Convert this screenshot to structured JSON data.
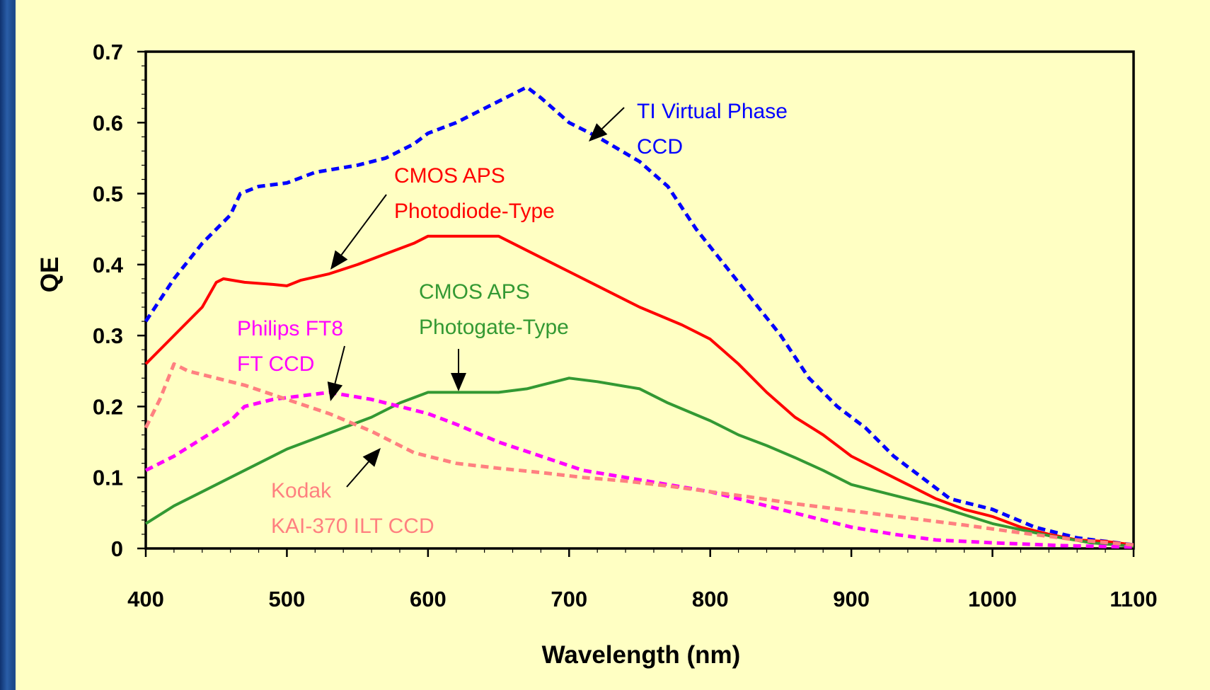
{
  "chart_data": {
    "type": "line",
    "title": "",
    "xlabel": "Wavelength (nm)",
    "ylabel": "QE",
    "xlim": [
      400,
      1100
    ],
    "ylim": [
      0,
      0.7
    ],
    "xticks": [
      "400",
      "500",
      "600",
      "700",
      "800",
      "900",
      "1000",
      "1100"
    ],
    "yticks": [
      "0",
      "0.1",
      "0.2",
      "0.3",
      "0.4",
      "0.5",
      "0.6",
      "0.7"
    ],
    "grid": false,
    "legend": "none",
    "series": [
      {
        "id": "ti",
        "color": "#0000ff",
        "dash": "dashed",
        "points": [
          [
            400,
            0.32
          ],
          [
            420,
            0.38
          ],
          [
            440,
            0.43
          ],
          [
            460,
            0.47
          ],
          [
            467,
            0.5
          ],
          [
            480,
            0.51
          ],
          [
            500,
            0.515
          ],
          [
            520,
            0.53
          ],
          [
            550,
            0.54
          ],
          [
            570,
            0.55
          ],
          [
            590,
            0.57
          ],
          [
            600,
            0.585
          ],
          [
            620,
            0.6
          ],
          [
            640,
            0.62
          ],
          [
            660,
            0.64
          ],
          [
            670,
            0.65
          ],
          [
            680,
            0.635
          ],
          [
            700,
            0.6
          ],
          [
            720,
            0.58
          ],
          [
            750,
            0.545
          ],
          [
            770,
            0.51
          ],
          [
            790,
            0.45
          ],
          [
            810,
            0.4
          ],
          [
            830,
            0.35
          ],
          [
            850,
            0.3
          ],
          [
            870,
            0.24
          ],
          [
            890,
            0.2
          ],
          [
            910,
            0.17
          ],
          [
            930,
            0.13
          ],
          [
            950,
            0.1
          ],
          [
            970,
            0.07
          ],
          [
            1000,
            0.055
          ],
          [
            1030,
            0.03
          ],
          [
            1060,
            0.015
          ],
          [
            1100,
            0.005
          ]
        ]
      },
      {
        "id": "cmos-pd",
        "color": "#ff0000",
        "dash": "solid",
        "points": [
          [
            400,
            0.26
          ],
          [
            420,
            0.3
          ],
          [
            440,
            0.34
          ],
          [
            450,
            0.375
          ],
          [
            455,
            0.38
          ],
          [
            470,
            0.375
          ],
          [
            490,
            0.372
          ],
          [
            500,
            0.37
          ],
          [
            510,
            0.378
          ],
          [
            530,
            0.387
          ],
          [
            550,
            0.4
          ],
          [
            570,
            0.415
          ],
          [
            590,
            0.43
          ],
          [
            600,
            0.44
          ],
          [
            620,
            0.44
          ],
          [
            650,
            0.44
          ],
          [
            670,
            0.42
          ],
          [
            700,
            0.39
          ],
          [
            720,
            0.37
          ],
          [
            750,
            0.34
          ],
          [
            780,
            0.315
          ],
          [
            800,
            0.295
          ],
          [
            820,
            0.26
          ],
          [
            840,
            0.22
          ],
          [
            860,
            0.185
          ],
          [
            880,
            0.16
          ],
          [
            900,
            0.13
          ],
          [
            920,
            0.11
          ],
          [
            940,
            0.09
          ],
          [
            960,
            0.07
          ],
          [
            980,
            0.055
          ],
          [
            1000,
            0.045
          ],
          [
            1020,
            0.03
          ],
          [
            1040,
            0.02
          ],
          [
            1060,
            0.012
          ],
          [
            1080,
            0.01
          ],
          [
            1100,
            0.005
          ]
        ]
      },
      {
        "id": "cmos-pg",
        "color": "#339933",
        "dash": "solid",
        "points": [
          [
            400,
            0.035
          ],
          [
            420,
            0.06
          ],
          [
            440,
            0.08
          ],
          [
            460,
            0.1
          ],
          [
            480,
            0.12
          ],
          [
            500,
            0.14
          ],
          [
            520,
            0.155
          ],
          [
            540,
            0.17
          ],
          [
            560,
            0.185
          ],
          [
            580,
            0.205
          ],
          [
            600,
            0.22
          ],
          [
            620,
            0.22
          ],
          [
            650,
            0.22
          ],
          [
            670,
            0.225
          ],
          [
            700,
            0.24
          ],
          [
            720,
            0.235
          ],
          [
            750,
            0.225
          ],
          [
            770,
            0.205
          ],
          [
            800,
            0.18
          ],
          [
            820,
            0.16
          ],
          [
            840,
            0.145
          ],
          [
            860,
            0.128
          ],
          [
            880,
            0.11
          ],
          [
            900,
            0.09
          ],
          [
            930,
            0.075
          ],
          [
            960,
            0.06
          ],
          [
            1000,
            0.035
          ],
          [
            1040,
            0.018
          ],
          [
            1070,
            0.008
          ],
          [
            1100,
            0.003
          ]
        ]
      },
      {
        "id": "philips",
        "color": "#ff00ff",
        "dash": "dashed",
        "points": [
          [
            400,
            0.11
          ],
          [
            420,
            0.13
          ],
          [
            440,
            0.155
          ],
          [
            460,
            0.18
          ],
          [
            470,
            0.2
          ],
          [
            490,
            0.21
          ],
          [
            510,
            0.215
          ],
          [
            530,
            0.22
          ],
          [
            560,
            0.21
          ],
          [
            580,
            0.2
          ],
          [
            600,
            0.19
          ],
          [
            620,
            0.175
          ],
          [
            650,
            0.15
          ],
          [
            680,
            0.13
          ],
          [
            710,
            0.11
          ],
          [
            740,
            0.1
          ],
          [
            770,
            0.09
          ],
          [
            800,
            0.08
          ],
          [
            830,
            0.065
          ],
          [
            860,
            0.05
          ],
          [
            900,
            0.03
          ],
          [
            930,
            0.02
          ],
          [
            960,
            0.012
          ],
          [
            1000,
            0.008
          ],
          [
            1050,
            0.004
          ],
          [
            1100,
            0.002
          ]
        ]
      },
      {
        "id": "kodak",
        "color": "#ff8080",
        "dash": "dashed",
        "points": [
          [
            400,
            0.17
          ],
          [
            410,
            0.21
          ],
          [
            420,
            0.26
          ],
          [
            430,
            0.25
          ],
          [
            450,
            0.24
          ],
          [
            470,
            0.23
          ],
          [
            500,
            0.21
          ],
          [
            530,
            0.19
          ],
          [
            560,
            0.165
          ],
          [
            590,
            0.135
          ],
          [
            620,
            0.12
          ],
          [
            650,
            0.113
          ],
          [
            680,
            0.107
          ],
          [
            710,
            0.1
          ],
          [
            740,
            0.095
          ],
          [
            770,
            0.088
          ],
          [
            800,
            0.08
          ],
          [
            830,
            0.072
          ],
          [
            860,
            0.063
          ],
          [
            900,
            0.053
          ],
          [
            940,
            0.043
          ],
          [
            980,
            0.033
          ],
          [
            1020,
            0.022
          ],
          [
            1060,
            0.012
          ],
          [
            1100,
            0.005
          ]
        ]
      }
    ],
    "annotations": [
      {
        "id": "ti",
        "lines": [
          "TI Virtual Phase",
          "CCD"
        ],
        "color": "#0000ff"
      },
      {
        "id": "cmos-pd",
        "lines": [
          "CMOS APS",
          "Photodiode-Type"
        ],
        "color": "#ff0000"
      },
      {
        "id": "cmos-pg",
        "lines": [
          "CMOS APS",
          "Photogate-Type"
        ],
        "color": "#339933"
      },
      {
        "id": "philips",
        "lines": [
          "Philips FT8",
          "FT CCD"
        ],
        "color": "#ff00ff"
      },
      {
        "id": "kodak",
        "lines": [
          "Kodak",
          "KAI-370 ILT CCD"
        ],
        "color": "#ff8080"
      }
    ]
  }
}
